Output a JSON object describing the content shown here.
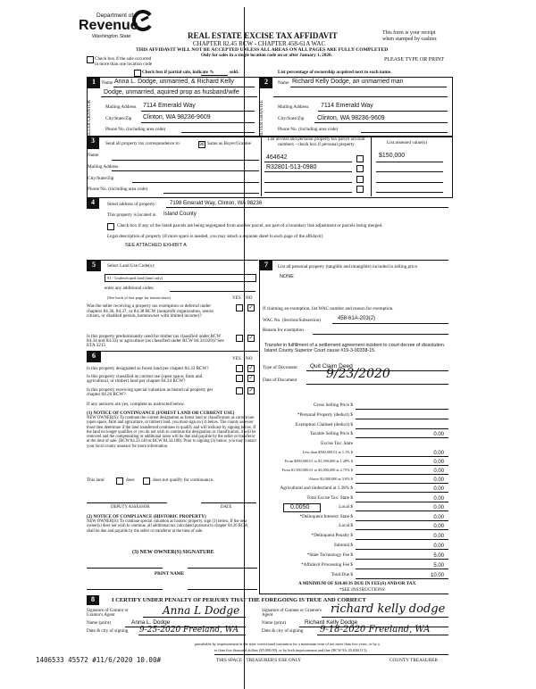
{
  "header": {
    "agency_line1": "Department of",
    "agency_name": "Revenue",
    "agency_state": "Washington State",
    "title": "REAL ESTATE EXCISE TAX AFFIDAVIT",
    "chapter": "CHAPTER 82.45 RCW - CHAPTER 458-61A WAC",
    "warning": "THIS AFFIDAVIT WILL NOT BE ACCEPTED UNLESS ALL AREAS ON ALL PAGES ARE FULLY COMPLETED",
    "only_for": "Only for sales in a single location code on or after January 1, 2020.",
    "receipt_note_1": "This form is your receipt",
    "receipt_note_2": "when stamped by cashier.",
    "please_type": "PLEASE TYPE OR PRINT",
    "multi_location_1": "Check box if the sale occurred",
    "multi_location_2": "in more than one location code",
    "partial_sale": "Check box if partial sale, indicate %",
    "sold": "sold.",
    "list_percentage": "List percentage of ownership acquired next to each name."
  },
  "section1": {
    "number": "1",
    "side_label": "SELLER GRANTOR",
    "name_label": "Name",
    "name_line1": "Anna L. Dodge, unmarried, & Richard Kelly",
    "name_line2": "Dodge, unmarried, aquired prop as husband/wife",
    "mailing_label": "Mailing Address",
    "mailing": "7114 Emerald Way",
    "city_label": "City/State/Zip",
    "city": "Clinton, WA 98236-9609",
    "phone_label": "Phone No. (including area code)"
  },
  "section2": {
    "number": "2",
    "side_label": "BUYER GRANTEE",
    "name_label": "Name",
    "name_line1": "Richard Kelly Dodge, an unmarried man",
    "mailing_label": "Mailing Address",
    "mailing": "7114 Emerald Way",
    "city_label": "City/State/Zip",
    "city": "Clinton, WA 98236-9609",
    "phone_label": "Phone No. (including area code)"
  },
  "section3": {
    "number": "3",
    "send_to": "Send all property tax correspondence to:",
    "same_as_buyer": "Same as Buyer/Grantee",
    "same_as_buyer_checked": true,
    "name_label": "Name",
    "mailing_label": "Mailing Address",
    "city_label": "City/State/Zip",
    "phone_label": "Phone No. (including area code)",
    "parcels_header": "List all real and personal property tax parcel account numbers - check box if personal property",
    "assessed_header": "List assessed value(s)",
    "parcels": [
      "464642",
      "R32801-513-0980",
      "",
      ""
    ],
    "assessed_values": [
      "$150,000",
      "",
      "",
      ""
    ]
  },
  "section4": {
    "number": "4",
    "street_label": "Street address of property:",
    "street": "7198 Emerald Way, Clinton, WA 98236",
    "located_label": "This property is located in",
    "county": "Island County",
    "segregated_text": "Check box if any of the listed parcels are being segregated from another parcel, are part of a boundary line adjustment or parcels being merged.",
    "legal_label": "Legal description of property (if more space is needed, you may attach a separate sheet to each page of the affidavit)",
    "legal": "SEE ATTACHED EXHIBIT A"
  },
  "section5": {
    "number": "5",
    "select_label": "Select Land Use Code(s):",
    "land_use_code": "91 - Undeveloped land (land only)",
    "additional_codes": "enter any additional codes:",
    "see_back": "(See back of last page for instructions)",
    "yes": "YES",
    "no": "NO",
    "questions": [
      {
        "text": "Was the seller receiving a property tax exemption or deferral under chapters 84.36, 84.37, or 84.38 RCW (nonprofit organization, senior citizen, or disabled person, homeowner with limited income)?",
        "answer": "no"
      },
      {
        "text": "Is this property predominantly used for timber (as classified under RCW 84.34 and 84.33) or agriculture (as classified under RCW 84.34.020)? See ETA 3215",
        "answer": "no"
      }
    ]
  },
  "section6": {
    "number": "6",
    "yes": "YES",
    "no": "NO",
    "questions": [
      {
        "text": "Is this property designated as forest land per chapter 84.33 RCW?",
        "answer": "no"
      },
      {
        "text": "Is this property classified as current use (open space, farm and agricultural, or timber) land per chapter 84.34 RCW?",
        "answer": "no"
      },
      {
        "text": "Is this property receiving special valuation as historical property per chapter 84.26 RCW?",
        "answer": "no"
      }
    ],
    "if_yes": "If any answers are yes, complete as instructed below.",
    "notice1_title": "(1) NOTICE OF CONTINUANCE (FOREST LAND OR CURRENT USE)",
    "notice1_body": "NEW OWNER(S): To continue the current designation as forest land or classification as current use (open space, farm and agriculture, or timber) land, you must sign on (3) below. The county assessor must then determine if the land transferred continues to qualify and will indicate by signing below. If the land no longer qualifies or you do not wish to continue the designation or classification, it will be removed and the compensating or additional taxes will be due and payable by the seller or transferor at the time of sale. (RCW 84.33.140 or RCW 84.34.108). Prior to signing (3) below, you may contact your local county assessor for more information.",
    "this_land": "This land",
    "does": "does",
    "does_not": "does not qualify for continuance.",
    "deputy_assessor": "DEPUTY ASSESSOR",
    "date": "DATE",
    "notice2_title": "(2) NOTICE OF COMPLIANCE (HISTORIC PROPERTY)",
    "notice2_body": "NEW OWNER(S): To continue special valuation as historic property, sign (3) below. If the new owner(s) does not wish to continue, all additional tax calculated pursuant to chapter 84.26 RCW, shall be due and payable by the seller or transferor at the time of sale.",
    "new_owner_signature": "(3) NEW OWNER(S) SIGNATURE",
    "print_name": "PRINT NAME"
  },
  "section7": {
    "number": "7",
    "personal_property_label": "List all personal property (tangible and intangible) included in selling price.",
    "personal_property": "NONE",
    "exemption_label": "If claiming an exemption, list WAC number and reason for exemption.",
    "wac_label": "WAC No. (Section/Subsection)",
    "wac": "458-61A-203(2)",
    "reason_label": "Reason for exemption",
    "reason": "Transfer in fulfillment of a settlement agreement incident to court decree of dissolution.  Island County Superior Court cause #19-3-00338-15.",
    "doc_type_label": "Type of Document",
    "doc_type": "Quit Claim Deed",
    "doc_date_label": "Date of Document",
    "doc_date": "9/23/2020",
    "local_rate": "0.0050",
    "tax_lines": [
      {
        "label": "Gross Selling Price $",
        "value": ""
      },
      {
        "label": "*Personal Property (deduct) $",
        "value": ""
      },
      {
        "label": "Exemption Claimed (deduct) $",
        "value": ""
      },
      {
        "label": "Taxable Selling Price $",
        "value": "0.00"
      },
      {
        "label": "Excise Tax: State",
        "value": ""
      },
      {
        "label": "Less than $500,000.01 at 1.1% $",
        "value": "0.00"
      },
      {
        "label": "From $500,000.01 to $1,500,000 at 1.28% $",
        "value": "0.00"
      },
      {
        "label": "From $1,500,000.01 to $3,000,000 at 2.75% $",
        "value": "0.00"
      },
      {
        "label": "Above $3,000,000 at 3.0% $",
        "value": "0.00"
      },
      {
        "label": "Agricultural and timberland at 1.28% $",
        "value": "0.00"
      },
      {
        "label": "Total Excise Tax: State $",
        "value": "0.00"
      },
      {
        "label": "Local $",
        "value": "0.00"
      },
      {
        "label": "*Delinquent Interest: State $",
        "value": "0.00"
      },
      {
        "label": "Local $",
        "value": "0.00"
      },
      {
        "label": "*Delinquent Penalty $",
        "value": "0.00"
      },
      {
        "label": "Subtotal $",
        "value": "0.00"
      },
      {
        "label": "*State Technology Fee $",
        "value": "5.00"
      },
      {
        "label": "*Affidavit Processing Fee $",
        "value": "5.00"
      },
      {
        "label": "Total Due $",
        "value": "10.00"
      }
    ],
    "minimum": "A MINIMUM OF $10.00 IS DUE IN FEE(S) AND/OR TAX",
    "see_instructions": "*SEE INSTRUCTIONS"
  },
  "section8": {
    "number": "8",
    "certify": "I CERTIFY UNDER PENALTY OF PERJURY THAT THE FOREGOING IS TRUE AND CORRECT",
    "grantor_sig_label": "Signature of Grantor or Grantor's Agent",
    "grantor_signature": "Anna L Dodge",
    "grantor_name_label": "Name (print)",
    "grantor_name": "Anna L. Dodge",
    "grantor_date_label": "Date & city of signing",
    "grantor_date": "9-25-2020 Freeland, WA",
    "grantee_sig_label": "Signature of Grantee or Grantee's Agent",
    "grantee_signature": "richard kelly dodge",
    "grantee_name_label": "Name (print)",
    "grantee_name": "Richard Kelly Dodge",
    "grantee_date_label": "Date & city of signing",
    "grantee_date": "9-18-2020 Freeland, WA",
    "perjury_1": "punishable by imprisonment in the state correctional institution for a maximum term of not more than five years, or by a",
    "perjury_2": "re than five thousand dollars ($5,000.00), or by both imprisonment and fine (RCW 9A.20.020(1C)).",
    "treasurer_use": "THIS SPACE - TREASURER'S USE ONLY",
    "county_treasurer": "COUNTY TREASURER"
  },
  "stamp": "1406533 45572 #11/6/2020 10.00#"
}
